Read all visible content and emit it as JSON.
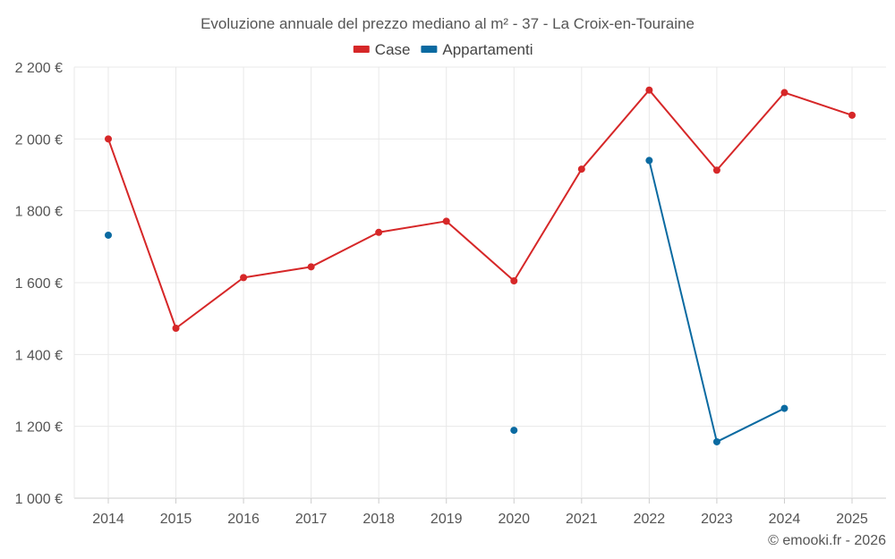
{
  "chart_data": {
    "type": "line",
    "title": "Evoluzione annuale del prezzo mediano al m² - 37 - La Croix-en-Touraine",
    "x": [
      2014,
      2015,
      2016,
      2017,
      2018,
      2019,
      2020,
      2021,
      2022,
      2023,
      2024,
      2025
    ],
    "x_tick_labels": [
      "2014",
      "2015",
      "2016",
      "2017",
      "2018",
      "2019",
      "2020",
      "2021",
      "2022",
      "2023",
      "2024",
      "2025"
    ],
    "ylim": [
      1000,
      2200
    ],
    "y_ticks": [
      1000,
      1200,
      1400,
      1600,
      1800,
      2000,
      2200
    ],
    "y_tick_labels": [
      "1 000 €",
      "1 200 €",
      "1 400 €",
      "1 600 €",
      "1 800 €",
      "2 000 €",
      "2 200 €"
    ],
    "grid": true,
    "legend_position": "top-center",
    "series": [
      {
        "name": "Case",
        "color": "#d62728",
        "values": [
          2000,
          1473,
          1614,
          1644,
          1740,
          1771,
          1605,
          1916,
          2136,
          1913,
          2129,
          2066
        ]
      },
      {
        "name": "Appartamenti",
        "color": "#0a6aa1",
        "values": [
          1732,
          null,
          null,
          null,
          null,
          null,
          1189,
          null,
          1940,
          1157,
          1250,
          null
        ]
      }
    ]
  },
  "credit": "© emooki.fr - 2026"
}
